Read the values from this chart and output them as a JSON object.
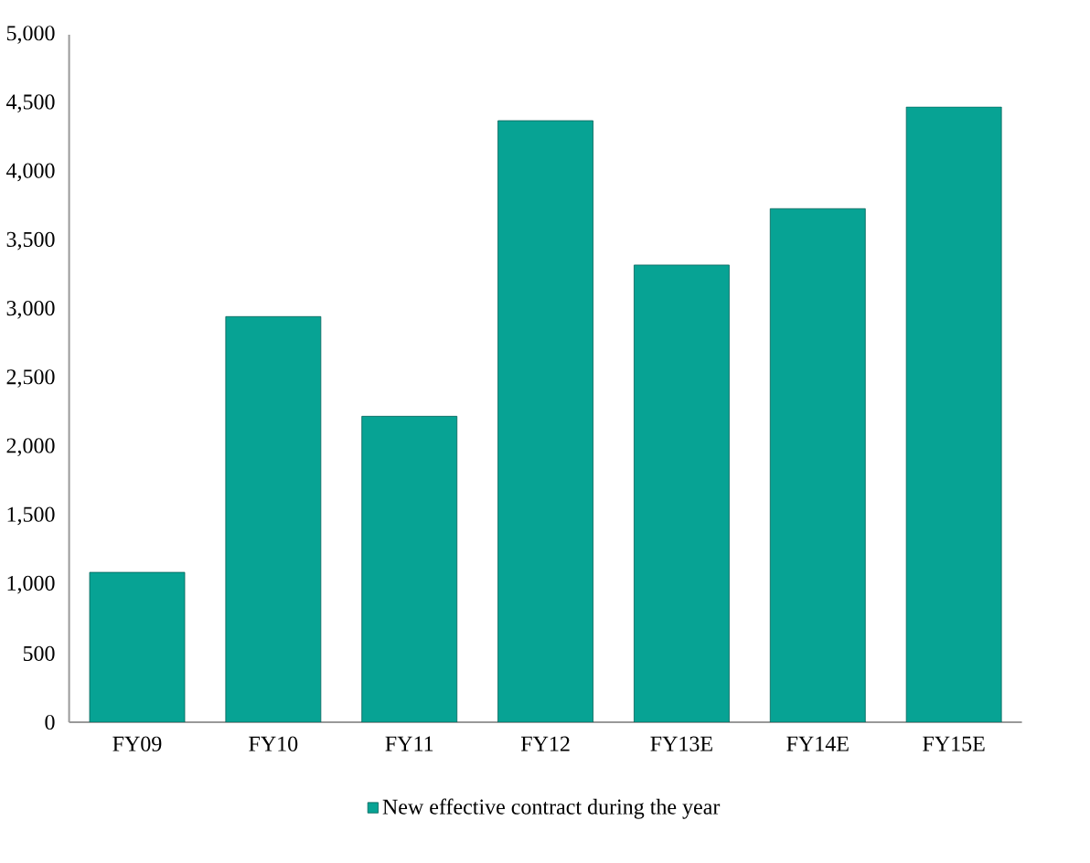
{
  "chart_data": {
    "type": "bar",
    "categories": [
      "FY09",
      "FY10",
      "FY11",
      "FY12",
      "FY13E",
      "FY14E",
      "FY15E"
    ],
    "series": [
      {
        "name": "New effective contract during the year",
        "color": "#07a394",
        "values": [
          1090,
          2950,
          2225,
          4375,
          3325,
          3735,
          4475
        ]
      }
    ],
    "ylim": [
      0,
      5000
    ],
    "yticks": [
      {
        "value": 0,
        "label": "0"
      },
      {
        "value": 500,
        "label": "500"
      },
      {
        "value": 1000,
        "label": "1,000"
      },
      {
        "value": 1500,
        "label": "1,500"
      },
      {
        "value": 2000,
        "label": "2,000"
      },
      {
        "value": 2500,
        "label": "2,500"
      },
      {
        "value": 3000,
        "label": "3,000"
      },
      {
        "value": 3500,
        "label": "3,500"
      },
      {
        "value": 4000,
        "label": "4,000"
      },
      {
        "value": 4500,
        "label": "4,500"
      },
      {
        "value": 5000,
        "label": "5,000"
      }
    ],
    "grid": false,
    "legend": "bottom"
  }
}
